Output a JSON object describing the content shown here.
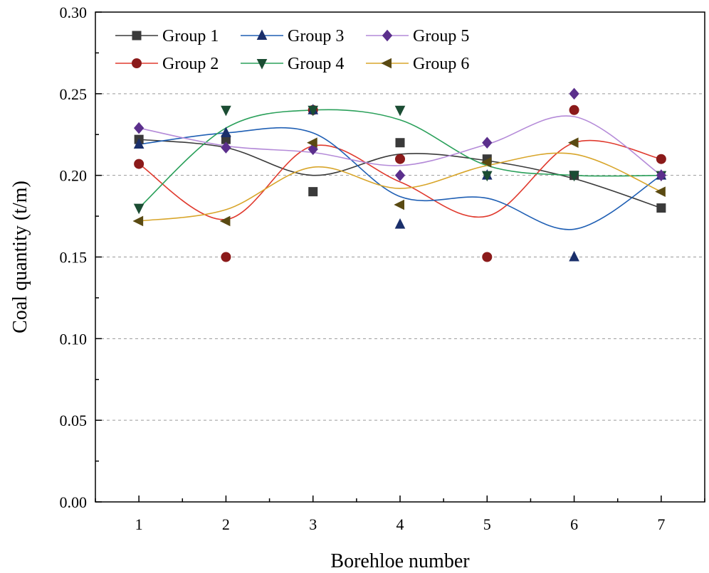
{
  "chart_data": {
    "type": "line",
    "title": "",
    "xlabel": "Borehloe number",
    "ylabel": "Coal quantity (t/m)",
    "xlim": [
      0.5,
      7.5
    ],
    "ylim": [
      0,
      0.3
    ],
    "x": [
      1,
      2,
      3,
      4,
      5,
      6,
      7
    ],
    "x_tick_labels": [
      "1",
      "2",
      "3",
      "4",
      "5",
      "6",
      "7"
    ],
    "y_ticks": [
      0,
      0.05,
      0.1,
      0.15,
      0.2,
      0.25,
      0.3
    ],
    "y_tick_labels": [
      "0.00",
      "0.05",
      "0.10",
      "0.15",
      "0.20",
      "0.25",
      "0.30"
    ],
    "grid": true,
    "legend_position": "top-left",
    "series": [
      {
        "name": "Group 1",
        "color": "#3a3a3a",
        "marker": "square",
        "values": [
          0.222,
          0.222,
          0.19,
          0.22,
          0.21,
          0.2,
          0.18
        ],
        "curve": [
          0.222,
          0.217,
          0.2,
          0.213,
          0.209,
          0.198,
          0.18
        ]
      },
      {
        "name": "Group 2",
        "color": "#e03a2e",
        "marker_color": "#8b1a1a",
        "marker": "circle",
        "values": [
          0.207,
          0.15,
          0.24,
          0.21,
          0.15,
          0.24,
          0.21
        ],
        "curve": [
          0.207,
          0.173,
          0.218,
          0.196,
          0.175,
          0.22,
          0.21
        ]
      },
      {
        "name": "Group 3",
        "color": "#1f5fb4",
        "marker_color": "#1a2f6b",
        "marker": "triangle-up",
        "values": [
          0.219,
          0.226,
          0.24,
          0.17,
          0.2,
          0.15,
          0.2
        ],
        "curve": [
          0.219,
          0.226,
          0.226,
          0.187,
          0.186,
          0.167,
          0.2
        ]
      },
      {
        "name": "Group 4",
        "color": "#2aa05a",
        "marker_color": "#1b4d33",
        "marker": "triangle-down",
        "values": [
          0.18,
          0.24,
          0.24,
          0.24,
          0.2,
          0.2,
          0.2
        ],
        "curve": [
          0.18,
          0.229,
          0.24,
          0.234,
          0.206,
          0.2,
          0.2
        ]
      },
      {
        "name": "Group 5",
        "color": "#b48ad8",
        "marker_color": "#5b2f8c",
        "marker": "diamond",
        "values": [
          0.229,
          0.217,
          0.216,
          0.2,
          0.22,
          0.25,
          0.2
        ],
        "curve": [
          0.229,
          0.218,
          0.214,
          0.206,
          0.219,
          0.236,
          0.2
        ]
      },
      {
        "name": "Group 6",
        "color": "#d8a52a",
        "marker_color": "#5a4a12",
        "marker": "triangle-left",
        "values": [
          0.172,
          0.172,
          0.22,
          0.182,
          0.208,
          0.22,
          0.19
        ],
        "curve": [
          0.172,
          0.179,
          0.205,
          0.192,
          0.206,
          0.213,
          0.19
        ]
      }
    ]
  }
}
